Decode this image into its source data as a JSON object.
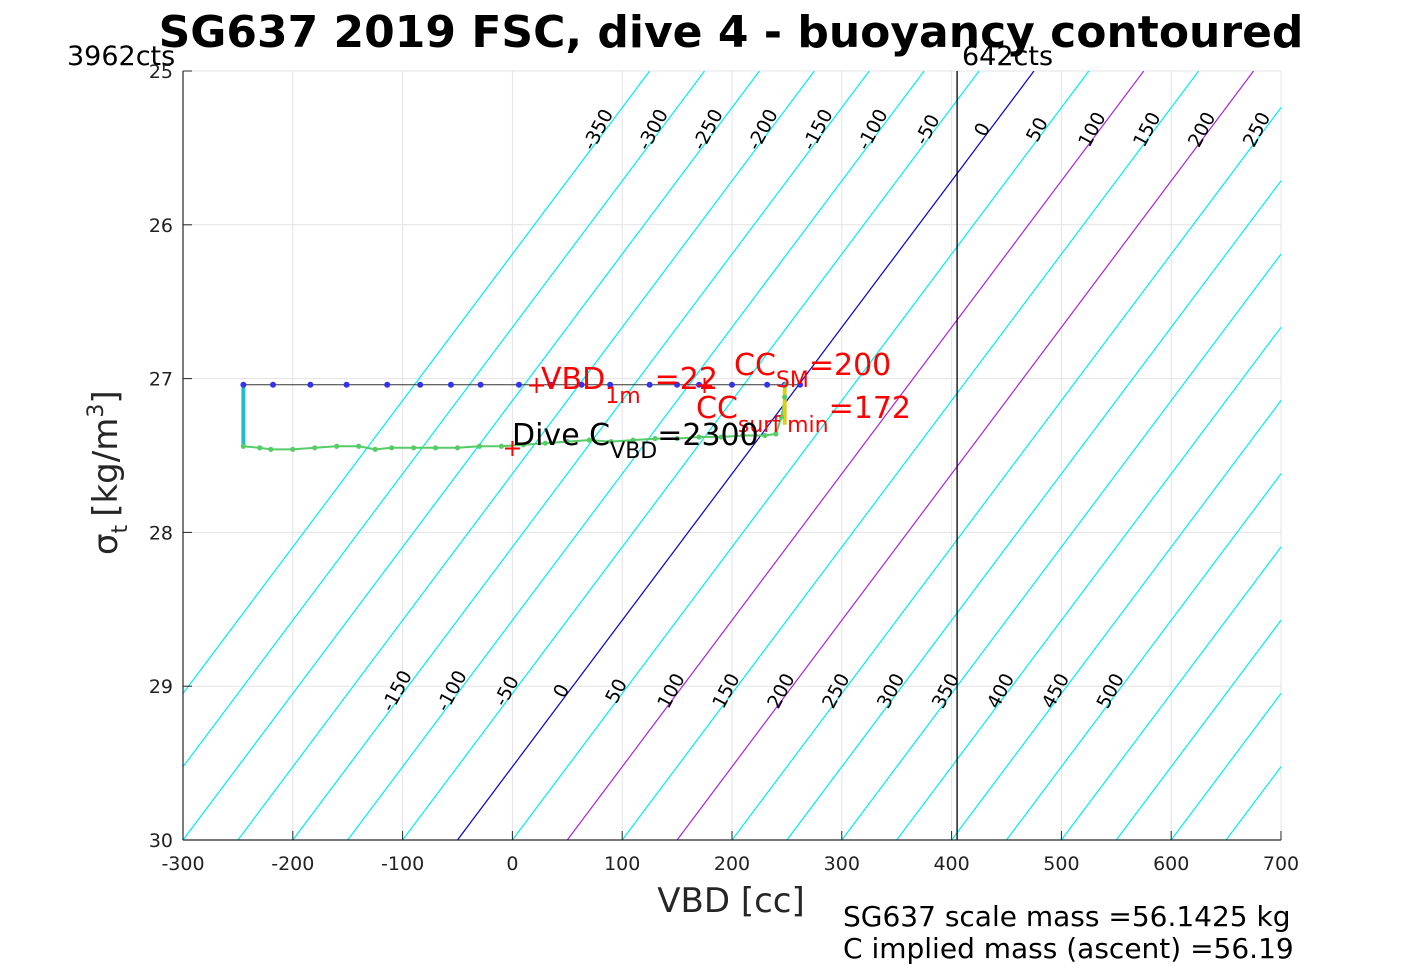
{
  "chart_data": {
    "type": "scatter",
    "title": "SG637 2019 FSC, dive 4 - buoyancy contoured",
    "xlabel": "VBD [cc]",
    "ylabel_main": "σ",
    "ylabel_sub": "t",
    "ylabel_unit": "[kg/m",
    "ylabel_sup": "3",
    "ylabel_close": "]",
    "xlim": [
      -300,
      700
    ],
    "ylim": [
      25,
      30
    ],
    "y_reversed": true,
    "grid": true,
    "x_ticks": [
      -300,
      -200,
      -100,
      0,
      100,
      200,
      300,
      400,
      500,
      600,
      700
    ],
    "x_tick_labels": [
      "-300",
      "-200",
      "-100",
      "0",
      "100",
      "200",
      "300",
      "400",
      "500",
      "600",
      "700"
    ],
    "y_ticks": [
      25,
      26,
      27,
      28,
      29,
      30
    ],
    "y_tick_labels": [
      "25",
      "26",
      "27",
      "28",
      "29",
      "30"
    ],
    "left_limit_label": "3962cts",
    "right_limit_label": "642cts",
    "right_limit_vbd": 405,
    "contours": {
      "description_levels_top": [
        "-350",
        "-300",
        "-250",
        "-200",
        "-150",
        "-100",
        "-50",
        "0",
        "50",
        "100",
        "150",
        "200",
        "250",
        "300",
        "350",
        "400",
        "450",
        "500"
      ],
      "description_levels_bottom": [
        "-150",
        "-100",
        "-50",
        "0",
        "50",
        "100",
        "150",
        "200",
        "250",
        "300",
        "350",
        "400",
        "450",
        "500"
      ],
      "levels": [
        -350,
        -300,
        -250,
        -200,
        -150,
        -100,
        -50,
        0,
        50,
        100,
        150,
        200,
        250,
        300,
        350,
        400,
        450,
        500,
        550,
        600,
        650,
        700,
        750,
        800,
        850,
        900,
        950,
        1000
      ],
      "zero_color": "#0000cc",
      "highlight_levels": [
        100,
        200
      ],
      "highlight_color": "#aa22dd",
      "other_color": "#00eeee"
    },
    "annotations": {
      "vbd1m_main": "VBD",
      "vbd1m_sub": "1m",
      "vbd1m_value": "=22",
      "ccsm_main": "CC",
      "ccsm_sub": "SM",
      "ccsm_value": "=200",
      "ccsurf_main": "CC",
      "ccsurf_sub": "surf min",
      "ccsurf_value": "=172",
      "dive_main": "Dive C",
      "dive_sub": "VBD",
      "dive_value": "=2300",
      "red_color": "#ff0000"
    },
    "markers": [
      {
        "vbd": 22,
        "sigma": 27.04
      },
      {
        "vbd": 0,
        "sigma": 27.45
      },
      {
        "vbd": 175,
        "sigma": 27.04
      }
    ],
    "descent": {
      "points": [
        [
          -245,
          27.04
        ],
        [
          -218,
          27.04
        ],
        [
          -184,
          27.04
        ],
        [
          -151,
          27.04
        ],
        [
          -114,
          27.04
        ],
        [
          -84,
          27.04
        ],
        [
          -56,
          27.04
        ],
        [
          -29,
          27.04
        ],
        [
          6,
          27.04
        ],
        [
          35,
          27.04
        ],
        [
          63,
          27.04
        ],
        [
          89,
          27.04
        ],
        [
          125,
          27.04
        ],
        [
          150,
          27.04
        ],
        [
          170,
          27.04
        ],
        [
          200,
          27.04
        ],
        [
          232,
          27.04
        ],
        [
          248,
          27.04
        ],
        [
          262,
          27.04
        ]
      ],
      "color": "#3333ee"
    },
    "ascent": {
      "points": [
        [
          -245,
          27.44
        ],
        [
          -230,
          27.45
        ],
        [
          -220,
          27.46
        ],
        [
          -200,
          27.46
        ],
        [
          -180,
          27.45
        ],
        [
          -160,
          27.44
        ],
        [
          -140,
          27.44
        ],
        [
          -125,
          27.46
        ],
        [
          -110,
          27.45
        ],
        [
          -90,
          27.45
        ],
        [
          -70,
          27.45
        ],
        [
          -50,
          27.45
        ],
        [
          -30,
          27.44
        ],
        [
          -10,
          27.44
        ],
        [
          10,
          27.43
        ],
        [
          30,
          27.42
        ],
        [
          50,
          27.41
        ],
        [
          70,
          27.4
        ],
        [
          90,
          27.41
        ],
        [
          110,
          27.4
        ],
        [
          130,
          27.39
        ],
        [
          150,
          27.39
        ],
        [
          170,
          27.38
        ],
        [
          190,
          27.38
        ],
        [
          210,
          27.37
        ],
        [
          230,
          27.37
        ],
        [
          240,
          27.36
        ],
        [
          245,
          27.25
        ],
        [
          248,
          27.12
        ],
        [
          249,
          27.04
        ]
      ],
      "color": "#55cc66"
    },
    "scale_mass": "SG637 scale mass =56.1425 kg",
    "implied_mass": "C    implied mass (ascent)  =56.19"
  }
}
